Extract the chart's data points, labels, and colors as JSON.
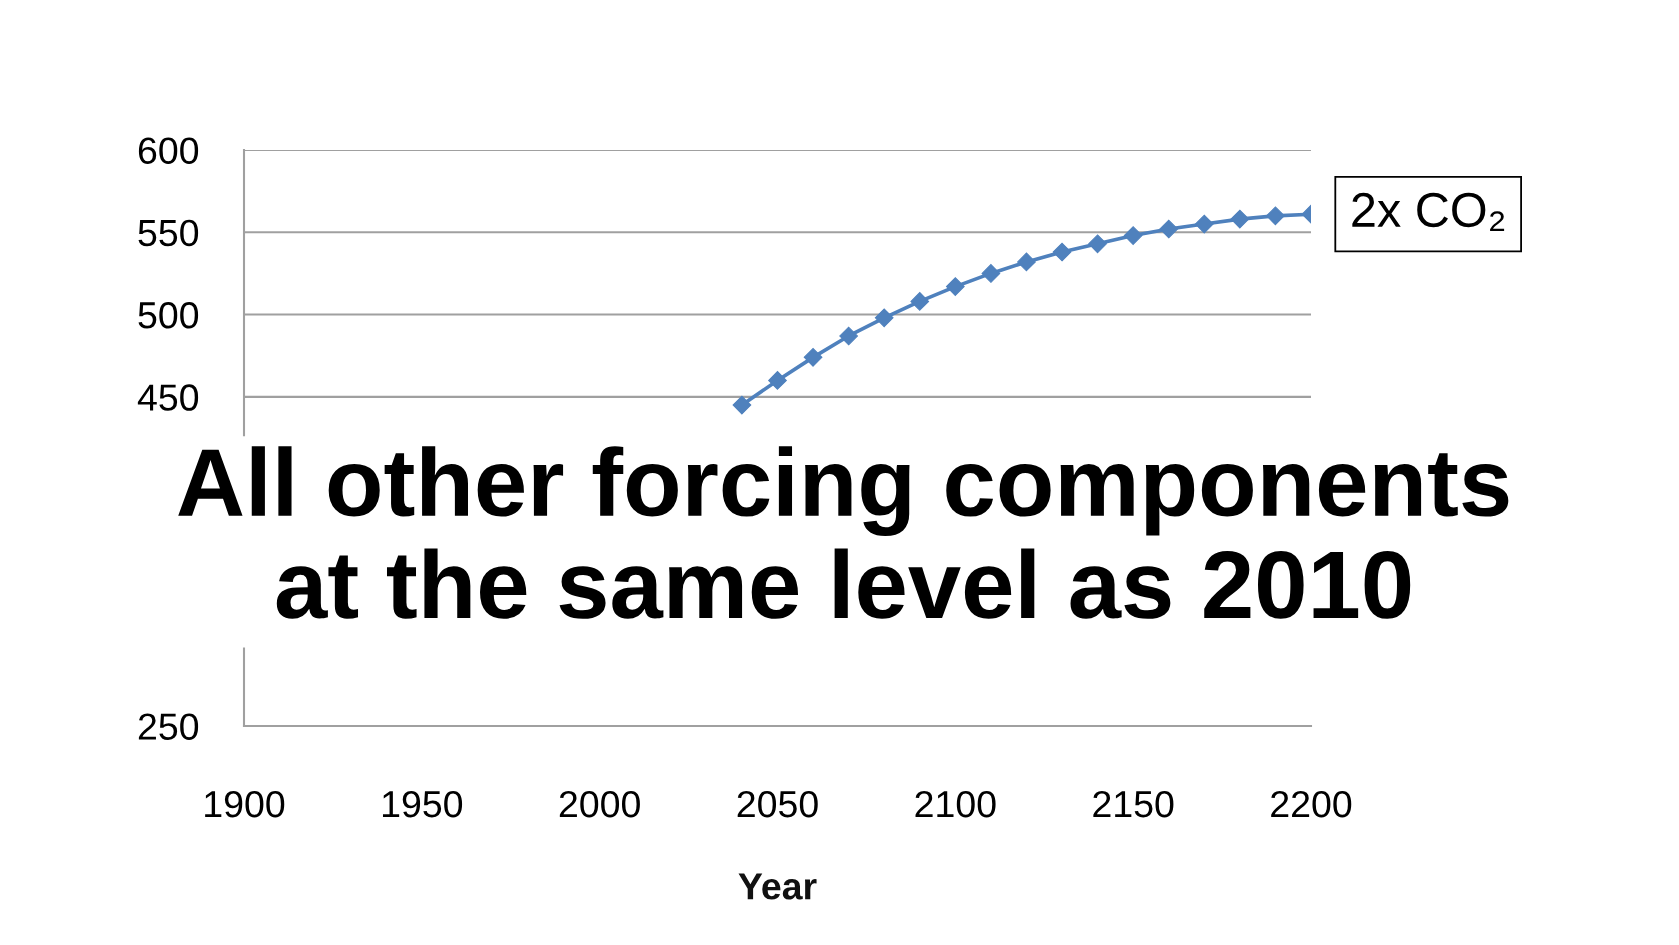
{
  "chart_data": {
    "type": "line",
    "series": [
      {
        "name": "2x CO₂",
        "color": "#4f81bd",
        "x": [
          2040,
          2050,
          2060,
          2070,
          2080,
          2090,
          2100,
          2110,
          2120,
          2130,
          2140,
          2150,
          2160,
          2170,
          2180,
          2190,
          2200
        ],
        "values": [
          445,
          460,
          474,
          487,
          498,
          508,
          517,
          525,
          532,
          538,
          543,
          548,
          552,
          555,
          558,
          560,
          561
        ]
      }
    ],
    "xlabel": "Year",
    "xlim": [
      1900,
      2200
    ],
    "xticks": [
      1900,
      1950,
      2000,
      2050,
      2100,
      2150,
      2200
    ],
    "ylim": [
      250,
      600
    ],
    "yticks": [
      250,
      450,
      500,
      550,
      600
    ],
    "grid": "y",
    "marker": "diamond",
    "line_style": "solid",
    "annotations": [
      "All other forcing components\nat the same level as 2010"
    ]
  }
}
